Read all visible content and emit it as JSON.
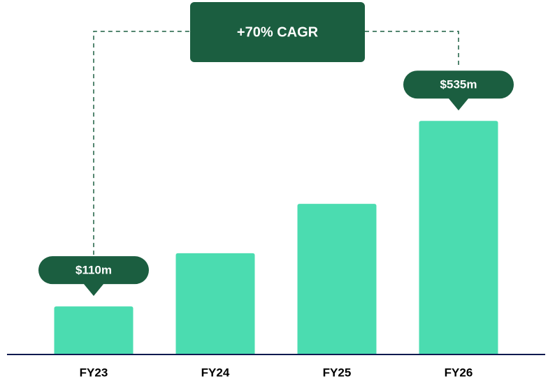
{
  "chart_data": {
    "type": "bar",
    "annotation": "+70% CAGR",
    "categories": [
      "FY23",
      "FY24",
      "FY25",
      "FY26"
    ],
    "values": [
      110,
      232,
      345,
      535
    ],
    "value_labels": [
      "$110m",
      null,
      null,
      "$535m"
    ],
    "color": "#4bdcb0",
    "label_color": "#1b5e40",
    "axis_color": "#0d1a4f",
    "ylim": [
      0,
      700
    ],
    "grid": false
  }
}
